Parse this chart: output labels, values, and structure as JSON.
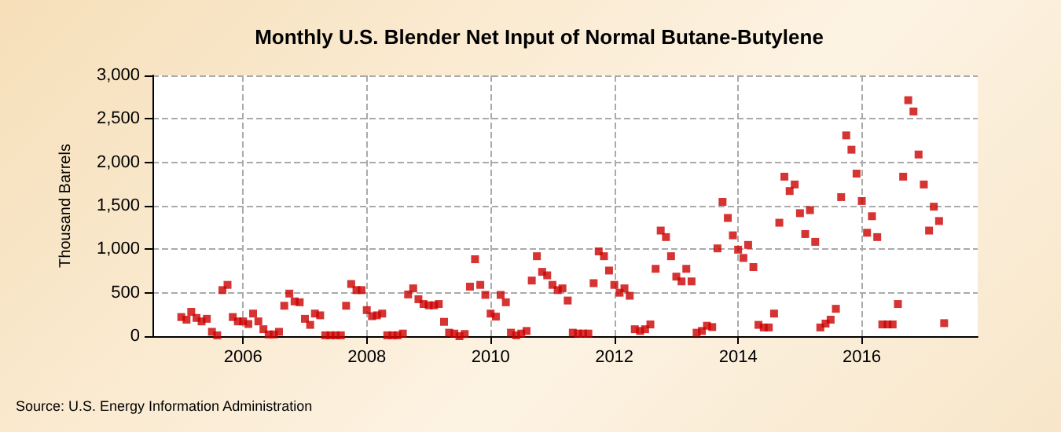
{
  "chart_data": {
    "type": "scatter",
    "title": "Monthly U.S. Blender Net Input of Normal Butane-Butylene",
    "ylabel": "Thousand Barrels",
    "annotations": [
      "Source: U.S. Energy Information Administration"
    ],
    "x": [
      "2005-01",
      "2005-02",
      "2005-03",
      "2005-04",
      "2005-05",
      "2005-06",
      "2005-07",
      "2005-08",
      "2005-09",
      "2005-10",
      "2005-11",
      "2005-12",
      "2006-01",
      "2006-02",
      "2006-03",
      "2006-04",
      "2006-05",
      "2006-06",
      "2006-07",
      "2006-08",
      "2006-09",
      "2006-10",
      "2006-11",
      "2006-12",
      "2007-01",
      "2007-02",
      "2007-03",
      "2007-04",
      "2007-05",
      "2007-06",
      "2007-07",
      "2007-08",
      "2007-09",
      "2007-10",
      "2007-11",
      "2007-12",
      "2008-01",
      "2008-02",
      "2008-03",
      "2008-04",
      "2008-05",
      "2008-06",
      "2008-07",
      "2008-08",
      "2008-09",
      "2008-10",
      "2008-11",
      "2008-12",
      "2009-01",
      "2009-02",
      "2009-03",
      "2009-04",
      "2009-05",
      "2009-06",
      "2009-07",
      "2009-08",
      "2009-09",
      "2009-10",
      "2009-11",
      "2009-12",
      "2010-01",
      "2010-02",
      "2010-03",
      "2010-04",
      "2010-05",
      "2010-06",
      "2010-07",
      "2010-08",
      "2010-09",
      "2010-10",
      "2010-11",
      "2010-12",
      "2011-01",
      "2011-02",
      "2011-03",
      "2011-04",
      "2011-05",
      "2011-06",
      "2011-07",
      "2011-08",
      "2011-09",
      "2011-10",
      "2011-11",
      "2011-12",
      "2012-01",
      "2012-02",
      "2012-03",
      "2012-04",
      "2012-05",
      "2012-06",
      "2012-07",
      "2012-08",
      "2012-09",
      "2012-10",
      "2012-11",
      "2012-12",
      "2013-01",
      "2013-02",
      "2013-03",
      "2013-04",
      "2013-05",
      "2013-06",
      "2013-07",
      "2013-08",
      "2013-09",
      "2013-10",
      "2013-11",
      "2013-12",
      "2014-01",
      "2014-02",
      "2014-03",
      "2014-04",
      "2014-05",
      "2014-06",
      "2014-07",
      "2014-08",
      "2014-09",
      "2014-10",
      "2014-11",
      "2014-12",
      "2015-01",
      "2015-02",
      "2015-03",
      "2015-04",
      "2015-05",
      "2015-06",
      "2015-07",
      "2015-08",
      "2015-09",
      "2015-10",
      "2015-11",
      "2015-12",
      "2016-01",
      "2016-02",
      "2016-03",
      "2016-04",
      "2016-05",
      "2016-06",
      "2016-07",
      "2016-08",
      "2016-09",
      "2016-10",
      "2016-11",
      "2016-12",
      "2017-01",
      "2017-02",
      "2017-03",
      "2017-04",
      "2017-05"
    ],
    "xlim": [
      "2004-07-15",
      "2017-11-15"
    ],
    "xticks": [
      {
        "value": "2006",
        "label": "2006"
      },
      {
        "value": "2008",
        "label": "2008"
      },
      {
        "value": "2010",
        "label": "2010"
      },
      {
        "value": "2012",
        "label": "2012"
      },
      {
        "value": "2014",
        "label": "2014"
      },
      {
        "value": "2016",
        "label": "2016"
      }
    ],
    "ylim": [
      0,
      3000
    ],
    "yticks": [
      {
        "value": 0,
        "label": "0"
      },
      {
        "value": 500,
        "label": "500"
      },
      {
        "value": 1000,
        "label": "1,000"
      },
      {
        "value": 1500,
        "label": "1,500"
      },
      {
        "value": 2000,
        "label": "2,000"
      },
      {
        "value": 2500,
        "label": "2,500"
      },
      {
        "value": 3000,
        "label": "3,000"
      }
    ],
    "grid": true,
    "marker": "square",
    "series": [
      {
        "color": "#cc0000",
        "values": [
          220,
          190,
          280,
          210,
          170,
          200,
          50,
          10,
          530,
          590,
          220,
          170,
          170,
          140,
          260,
          170,
          80,
          20,
          20,
          50,
          350,
          490,
          400,
          390,
          200,
          130,
          260,
          240,
          10,
          10,
          10,
          10,
          350,
          600,
          530,
          530,
          300,
          230,
          240,
          260,
          10,
          10,
          10,
          30,
          480,
          550,
          425,
          370,
          355,
          355,
          370,
          165,
          40,
          30,
          0,
          25,
          570,
          885,
          590,
          475,
          260,
          225,
          475,
          390,
          40,
          10,
          30,
          60,
          640,
          920,
          740,
          700,
          590,
          530,
          550,
          410,
          40,
          30,
          30,
          30,
          610,
          975,
          920,
          755,
          590,
          500,
          550,
          465,
          80,
          60,
          80,
          135,
          775,
          1215,
          1140,
          920,
          685,
          630,
          775,
          630,
          40,
          60,
          120,
          105,
          1010,
          1545,
          1360,
          1160,
          995,
          900,
          1050,
          795,
          130,
          100,
          100,
          260,
          1305,
          1835,
          1670,
          1745,
          1415,
          1175,
          1450,
          1085,
          100,
          145,
          190,
          315,
          1600,
          2310,
          2145,
          1870,
          1555,
          1190,
          1380,
          1140,
          135,
          135,
          135,
          370,
          1835,
          2715,
          2585,
          2090,
          1745,
          1215,
          1490,
          1325,
          150
        ]
      }
    ]
  }
}
